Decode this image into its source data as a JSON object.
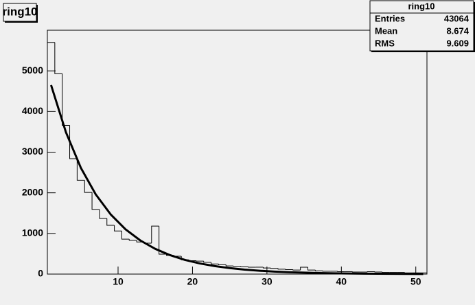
{
  "chart_data": {
    "type": "histogram",
    "title": "ring10",
    "bins": [
      0.5,
      1.5,
      2.5,
      3.5,
      4.5,
      5.5,
      6.5,
      7.5,
      8.5,
      9.5,
      10.5,
      11.5,
      12.5,
      13.5,
      14.5,
      15.5,
      16.5,
      17.5,
      18.5,
      19.5,
      20.5,
      21.5,
      22.5,
      23.5,
      24.5,
      25.5,
      26.5,
      27.5,
      28.5,
      29.5,
      30.5,
      31.5,
      32.5,
      33.5,
      34.5,
      35.5,
      36.5,
      37.5,
      38.5,
      39.5,
      40.5,
      41.5,
      42.5,
      43.5,
      44.5,
      45.5,
      46.5,
      47.5,
      48.5,
      49.5,
      50.5,
      51.5
    ],
    "values": [
      5700,
      4930,
      3660,
      2840,
      2310,
      2010,
      1590,
      1370,
      1200,
      1060,
      860,
      830,
      790,
      760,
      1180,
      490,
      460,
      440,
      350,
      330,
      320,
      290,
      250,
      230,
      200,
      190,
      180,
      170,
      170,
      150,
      140,
      120,
      110,
      100,
      170,
      100,
      80,
      70,
      70,
      60,
      60,
      50,
      50,
      60,
      50,
      40,
      40,
      40,
      30,
      30,
      30
    ],
    "color": "#000000",
    "fit": {
      "x": [
        1,
        3,
        5,
        7,
        9,
        11,
        13,
        15,
        17,
        19,
        21,
        23,
        25,
        27,
        29,
        31,
        33,
        35,
        37,
        39,
        41,
        43,
        45,
        47,
        49,
        51
      ],
      "values": [
        4650,
        3487,
        2614,
        1960,
        1470,
        1102,
        826,
        620,
        465,
        348,
        261,
        196,
        147,
        110,
        83,
        62,
        46,
        35,
        26,
        20,
        15,
        11,
        8,
        6,
        5,
        3
      ],
      "color": "#000000"
    },
    "xlim": [
      0.5,
      51.5
    ],
    "xticks": [
      10,
      20,
      30,
      40,
      50
    ],
    "ylim": [
      0,
      6000
    ],
    "yticks": [
      0,
      1000,
      2000,
      3000,
      4000,
      5000
    ],
    "stats": [
      {
        "label": "Entries",
        "value": 43064
      },
      {
        "label": "Mean",
        "value": 8.674
      },
      {
        "label": "RMS",
        "value": 9.609
      }
    ]
  }
}
